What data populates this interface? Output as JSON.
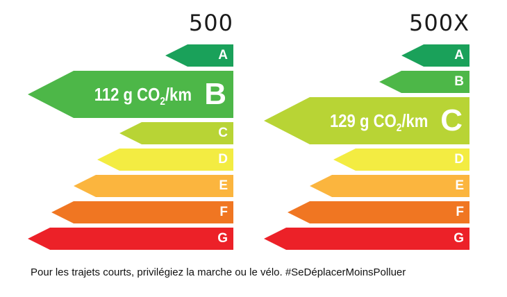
{
  "colors": {
    "A": "#1aa15a",
    "B": "#4db748",
    "C": "#b8d435",
    "D": "#f3ec42",
    "E": "#fbb53e",
    "F": "#f07622",
    "G": "#ec2128"
  },
  "labels": [
    {
      "model": "500",
      "rating": "B",
      "emission_prefix": "112 g CO",
      "emission_sub": "2",
      "emission_suffix": "/km",
      "classes": [
        "A",
        "B",
        "C",
        "D",
        "E",
        "F",
        "G"
      ]
    },
    {
      "model": "500X",
      "rating": "C",
      "emission_prefix": "129 g CO",
      "emission_sub": "2",
      "emission_suffix": "/km",
      "classes": [
        "A",
        "B",
        "C",
        "D",
        "E",
        "F",
        "G"
      ]
    }
  ],
  "footer": "Pour les trajets courts, privilégiez la marche ou le vélo. #SeDéplacerMoinsPolluer"
}
